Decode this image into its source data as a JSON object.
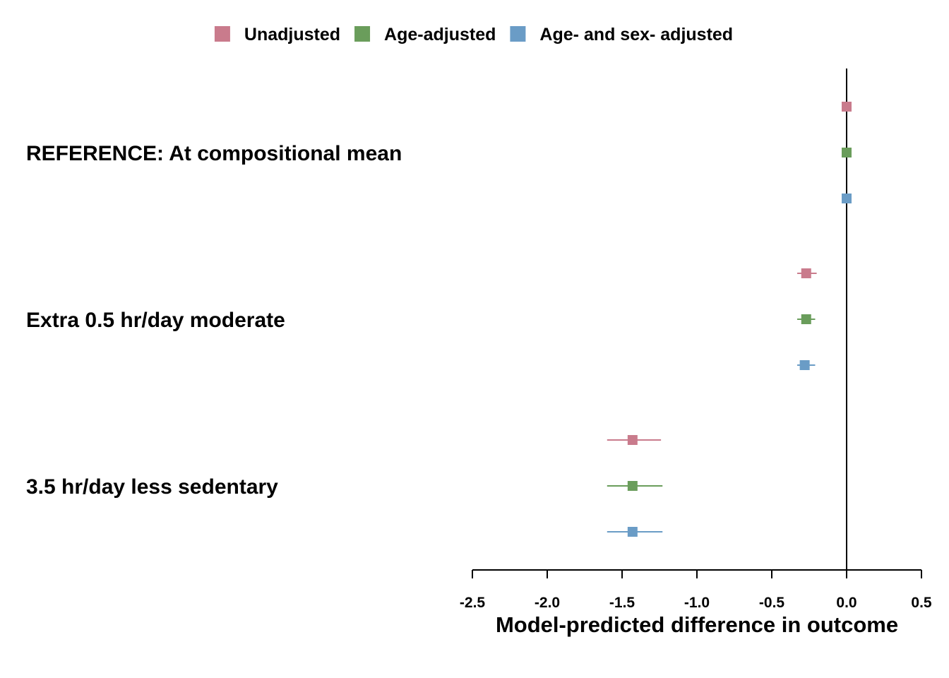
{
  "chart_data": {
    "type": "forest",
    "title": "",
    "xlabel": "Model-predicted difference in outcome",
    "ylabel": "",
    "xlim": [
      -2.5,
      0.5
    ],
    "x_ticks": [
      -2.5,
      -2.0,
      -1.5,
      -1.0,
      -0.5,
      0.0,
      0.5
    ],
    "x_tick_labels": [
      "-2.5",
      "-2.0",
      "-1.5",
      "-1.0",
      "-0.5",
      "0.0",
      "0.5"
    ],
    "reference_line": 0.0,
    "legend_position": "top",
    "groups": [
      "REFERENCE: At compositional mean",
      "Extra 0.5 hr/day moderate",
      "3.5 hr/day less sedentary"
    ],
    "series": [
      {
        "name": "Unadjusted",
        "color": "#c97b8c",
        "estimates": [
          0.0,
          -0.27,
          -1.43
        ],
        "lower": [
          0.0,
          -0.33,
          -1.6
        ],
        "upper": [
          0.0,
          -0.2,
          -1.24
        ]
      },
      {
        "name": "Age-adjusted",
        "color": "#6a9d5b",
        "estimates": [
          0.0,
          -0.27,
          -1.43
        ],
        "lower": [
          0.0,
          -0.33,
          -1.6
        ],
        "upper": [
          0.0,
          -0.21,
          -1.23
        ]
      },
      {
        "name": "Age- and sex- adjusted",
        "color": "#6a9cc6",
        "estimates": [
          0.0,
          -0.28,
          -1.43
        ],
        "lower": [
          0.0,
          -0.33,
          -1.6
        ],
        "upper": [
          0.0,
          -0.21,
          -1.23
        ]
      }
    ]
  }
}
